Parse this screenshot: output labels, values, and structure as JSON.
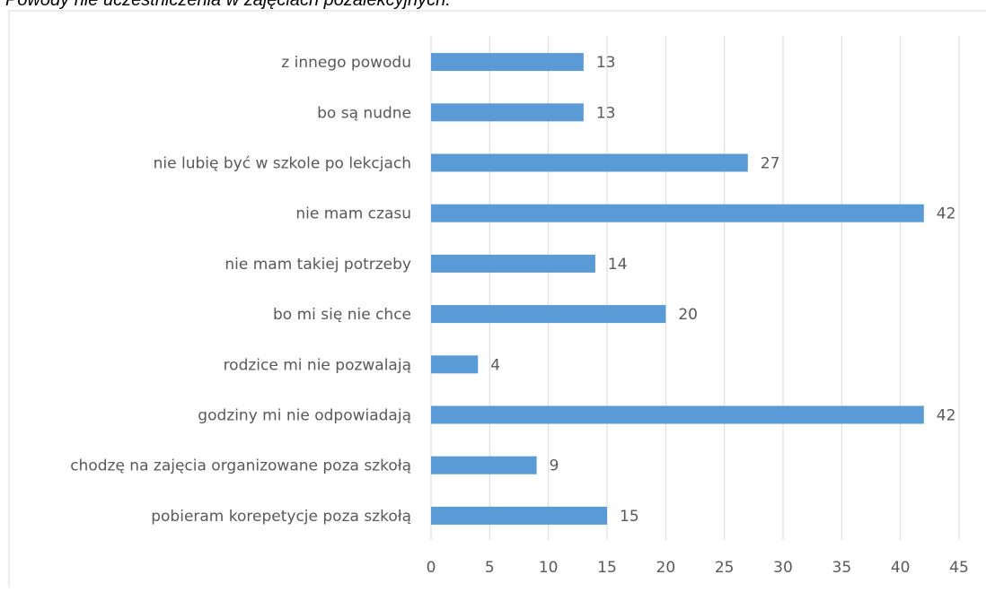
{
  "chart_data": {
    "type": "bar",
    "orientation": "horizontal",
    "title": "Powody nie uczestniczenia w zajęciach pozalekcyjnych.",
    "categories": [
      "z innego powodu",
      "bo są nudne",
      "nie lubię być w szkole po lekcjach",
      "nie mam czasu",
      "nie mam takiej potrzeby",
      "bo mi się nie chce",
      "rodzice mi nie pozwalają",
      "godziny mi nie odpowiadają",
      "chodzę na zajęcia organizowane poza szkołą",
      "pobieram korepetycje poza szkołą"
    ],
    "values": [
      13,
      13,
      27,
      42,
      14,
      20,
      4,
      42,
      9,
      15
    ],
    "color": "#5b9bd5",
    "xlim": [
      0,
      45
    ],
    "xticks": [
      0,
      5,
      10,
      15,
      20,
      25,
      30,
      35,
      40,
      45
    ],
    "grid": true
  }
}
